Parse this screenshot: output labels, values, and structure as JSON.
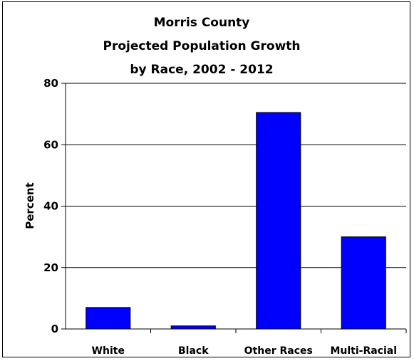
{
  "chart_data": {
    "type": "bar",
    "title_lines": [
      "Morris County",
      "Projected Population Growth",
      "by Race, 2002 - 2012"
    ],
    "categories": [
      "White",
      "Black",
      "Other Races",
      "Multi-Racial"
    ],
    "values": [
      7,
      1,
      70.5,
      30
    ],
    "xlabel": "",
    "ylabel": "Percent",
    "ylim": [
      0,
      80
    ],
    "yticks": [
      "0",
      "20",
      "40",
      "60",
      "80"
    ],
    "bar_color": "#0000ff",
    "grid": true,
    "legend": "none"
  }
}
